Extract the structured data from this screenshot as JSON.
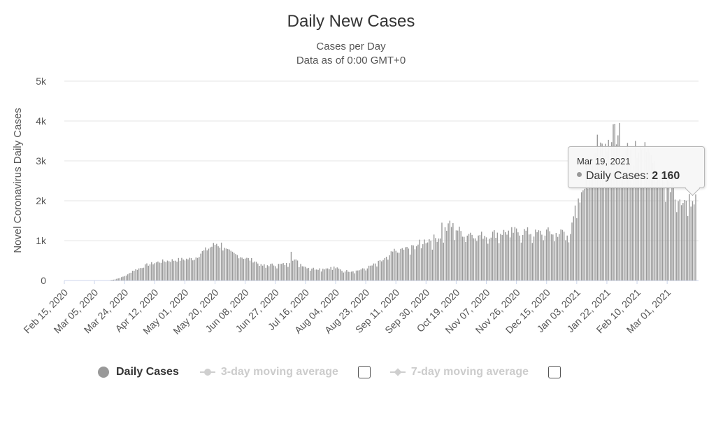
{
  "chart_data": {
    "type": "bar",
    "title": "Daily New Cases",
    "subtitle": "Cases per Day",
    "subtitle2": "Data as of 0:00 GMT+0",
    "ylabel": "Novel Coronavirus Daily Cases",
    "xlabel": "",
    "ylim": [
      0,
      5000
    ],
    "y_ticks": [
      {
        "value": 0,
        "label": "0"
      },
      {
        "value": 1000,
        "label": "1k"
      },
      {
        "value": 2000,
        "label": "2k"
      },
      {
        "value": 3000,
        "label": "3k"
      },
      {
        "value": 4000,
        "label": "4k"
      },
      {
        "value": 5000,
        "label": "5k"
      }
    ],
    "start_date": "2020-02-15",
    "num_days": 399,
    "x_ticks": [
      {
        "day": 0,
        "label": "Feb 15, 2020"
      },
      {
        "day": 19,
        "label": "Mar 05, 2020"
      },
      {
        "day": 38,
        "label": "Mar 24, 2020"
      },
      {
        "day": 57,
        "label": "Apr 12, 2020"
      },
      {
        "day": 76,
        "label": "May 01, 2020"
      },
      {
        "day": 95,
        "label": "May 20, 2020"
      },
      {
        "day": 114,
        "label": "Jun 08, 2020"
      },
      {
        "day": 133,
        "label": "Jun 27, 2020"
      },
      {
        "day": 152,
        "label": "Jul 16, 2020"
      },
      {
        "day": 171,
        "label": "Aug 04, 2020"
      },
      {
        "day": 190,
        "label": "Aug 23, 2020"
      },
      {
        "day": 209,
        "label": "Sep 11, 2020"
      },
      {
        "day": 228,
        "label": "Sep 30, 2020"
      },
      {
        "day": 247,
        "label": "Oct 19, 2020"
      },
      {
        "day": 266,
        "label": "Nov 07, 2020"
      },
      {
        "day": 285,
        "label": "Nov 26, 2020"
      },
      {
        "day": 304,
        "label": "Dec 15, 2020"
      },
      {
        "day": 323,
        "label": "Jan 03, 2021"
      },
      {
        "day": 342,
        "label": "Jan 22, 2021"
      },
      {
        "day": 361,
        "label": "Feb 10, 2021"
      },
      {
        "day": 380,
        "label": "Mar 01, 2021"
      }
    ],
    "series": [
      {
        "name": "Daily Cases",
        "color": "#999999",
        "anchors": [
          [
            0,
            0
          ],
          [
            28,
            0
          ],
          [
            32,
            30
          ],
          [
            36,
            80
          ],
          [
            40,
            150
          ],
          [
            43,
            250
          ],
          [
            48,
            320
          ],
          [
            52,
            400
          ],
          [
            56,
            440
          ],
          [
            60,
            480
          ],
          [
            66,
            510
          ],
          [
            72,
            530
          ],
          [
            78,
            550
          ],
          [
            82,
            560
          ],
          [
            86,
            700
          ],
          [
            92,
            850
          ],
          [
            96,
            950
          ],
          [
            101,
            800
          ],
          [
            105,
            700
          ],
          [
            110,
            630
          ],
          [
            115,
            560
          ],
          [
            120,
            500
          ],
          [
            124,
            380
          ],
          [
            130,
            400
          ],
          [
            136,
            410
          ],
          [
            140,
            420
          ],
          [
            144,
            560
          ],
          [
            148,
            450
          ],
          [
            152,
            350
          ],
          [
            158,
            300
          ],
          [
            165,
            310
          ],
          [
            170,
            340
          ],
          [
            175,
            260
          ],
          [
            180,
            240
          ],
          [
            184,
            250
          ],
          [
            188,
            290
          ],
          [
            192,
            350
          ],
          [
            196,
            420
          ],
          [
            200,
            500
          ],
          [
            204,
            600
          ],
          [
            208,
            760
          ],
          [
            212,
            800
          ],
          [
            218,
            820
          ],
          [
            222,
            900
          ],
          [
            226,
            1000
          ],
          [
            230,
            1050
          ],
          [
            236,
            1100
          ],
          [
            240,
            1300
          ],
          [
            244,
            1400
          ],
          [
            248,
            1300
          ],
          [
            252,
            1200
          ],
          [
            256,
            1220
          ],
          [
            262,
            1150
          ],
          [
            268,
            1180
          ],
          [
            275,
            1230
          ],
          [
            282,
            1250
          ],
          [
            290,
            1260
          ],
          [
            297,
            1200
          ],
          [
            304,
            1250
          ],
          [
            310,
            1200
          ],
          [
            316,
            1250
          ],
          [
            318,
            1000
          ],
          [
            320,
            1600
          ],
          [
            323,
            1850
          ],
          [
            326,
            2100
          ],
          [
            329,
            2800
          ],
          [
            332,
            3300
          ],
          [
            336,
            3400
          ],
          [
            342,
            3550
          ],
          [
            346,
            3800
          ],
          [
            350,
            3600
          ],
          [
            355,
            3300
          ],
          [
            360,
            3200
          ],
          [
            365,
            3100
          ],
          [
            370,
            3050
          ],
          [
            374,
            2700
          ],
          [
            378,
            2600
          ],
          [
            383,
            2400
          ],
          [
            388,
            2150
          ],
          [
            393,
            2000
          ],
          [
            398,
            2160
          ]
        ],
        "spikes": [
          [
            99,
            950
          ],
          [
            101,
            820
          ],
          [
            143,
            720
          ],
          [
            238,
            1450
          ],
          [
            243,
            1500
          ],
          [
            346,
            3920
          ],
          [
            347,
            3930
          ],
          [
            350,
            3950
          ],
          [
            355,
            3450
          ],
          [
            360,
            3500
          ],
          [
            366,
            3470
          ],
          [
            372,
            3000
          ]
        ]
      },
      {
        "name": "3-day moving average",
        "visible": false
      },
      {
        "name": "7-day moving average",
        "visible": false
      }
    ]
  },
  "legend": {
    "daily": "Daily Cases",
    "ma3": "3-day moving average",
    "ma7": "7-day moving average"
  },
  "tooltip": {
    "date": "Mar 19, 2021",
    "series_label": "Daily Cases:",
    "value": "2 160"
  }
}
